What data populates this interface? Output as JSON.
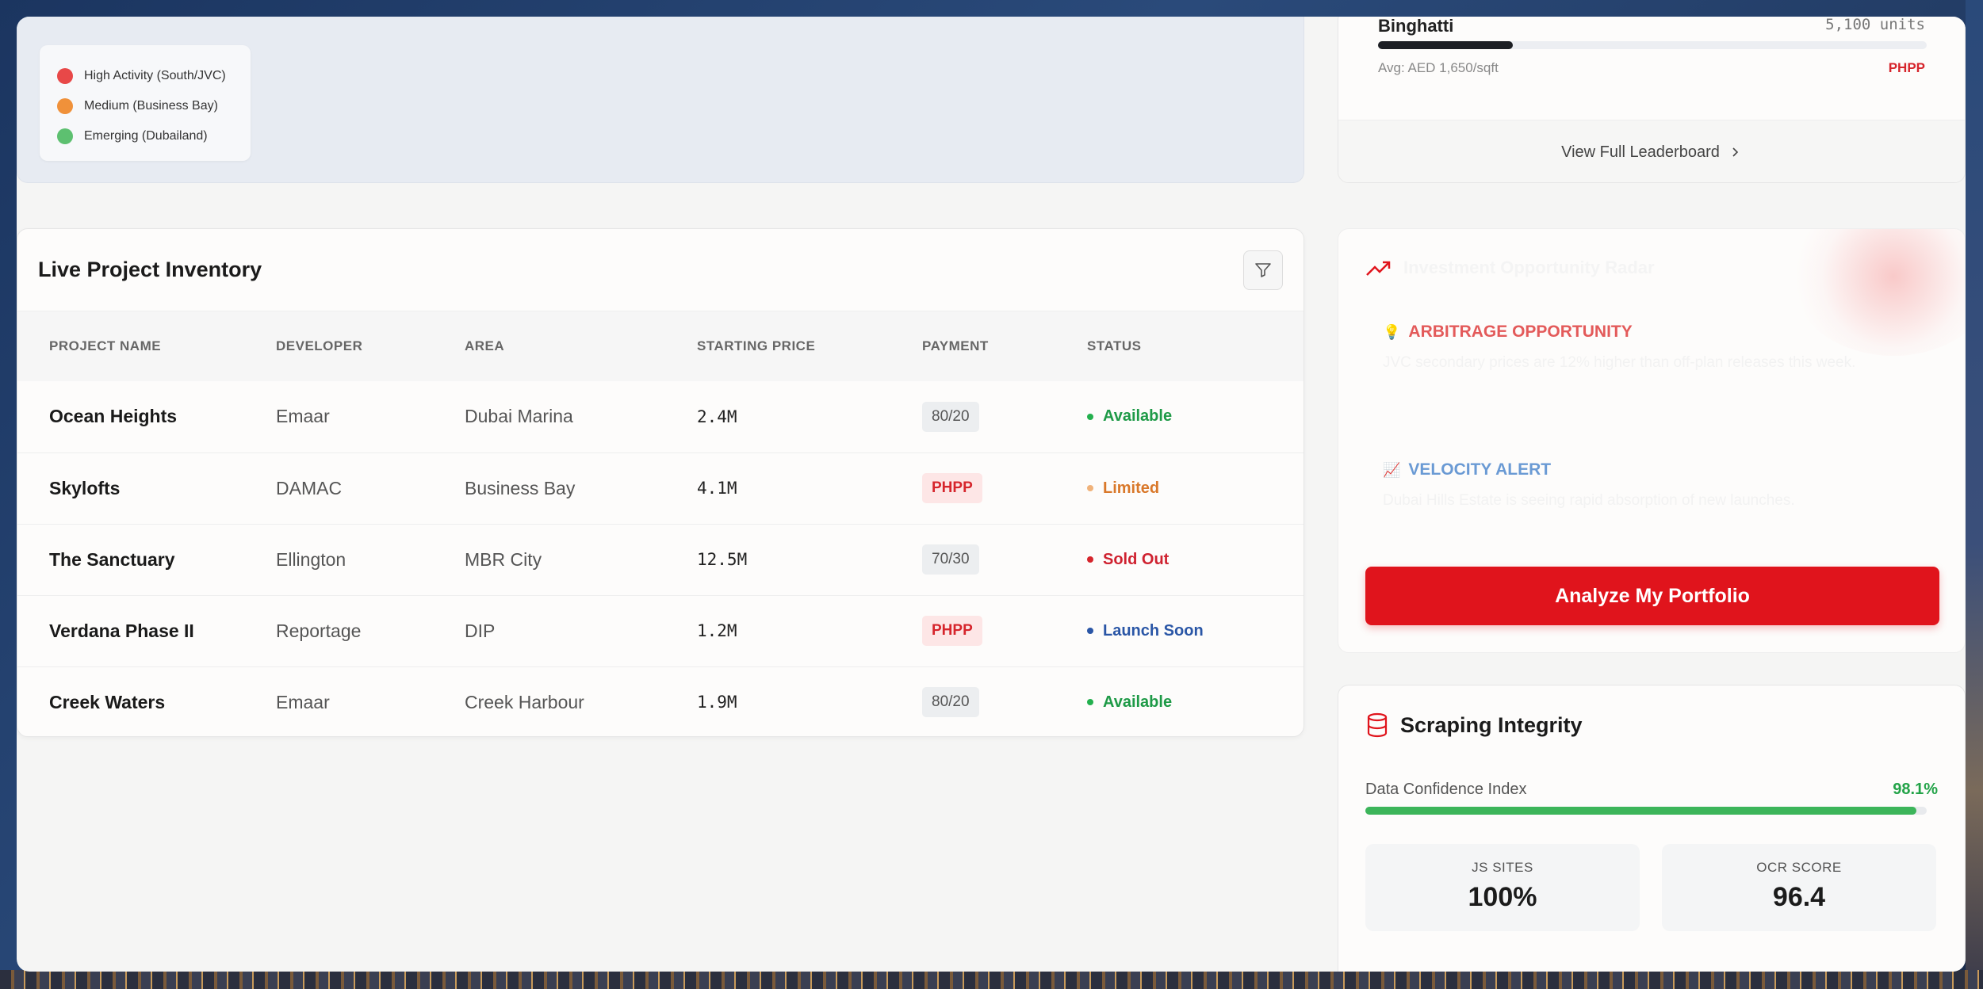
{
  "map": {
    "legend": [
      {
        "label": "High Activity (South/JVC)",
        "color": "#e84848"
      },
      {
        "label": "Medium (Business Bay)",
        "color": "#f0913a"
      },
      {
        "label": "Emerging (Dubailand)",
        "color": "#5dc070"
      }
    ]
  },
  "inventory": {
    "title": "Live Project Inventory",
    "columns": [
      "PROJECT NAME",
      "DEVELOPER",
      "AREA",
      "STARTING PRICE",
      "PAYMENT",
      "STATUS"
    ],
    "rows": [
      {
        "project": "Ocean Heights",
        "developer": "Emaar",
        "area": "Dubai Marina",
        "price": "2.4M",
        "payment": "80/20",
        "status": "Available"
      },
      {
        "project": "Skylofts",
        "developer": "DAMAC",
        "area": "Business Bay",
        "price": "4.1M",
        "payment": "PHPP",
        "status": "Limited"
      },
      {
        "project": "The Sanctuary",
        "developer": "Ellington",
        "area": "MBR City",
        "price": "12.5M",
        "payment": "70/30",
        "status": "Sold Out"
      },
      {
        "project": "Verdana Phase II",
        "developer": "Reportage",
        "area": "DIP",
        "price": "1.2M",
        "payment": "PHPP",
        "status": "Launch Soon"
      },
      {
        "project": "Creek Waters",
        "developer": "Emaar",
        "area": "Creek Harbour",
        "price": "1.9M",
        "payment": "80/20",
        "status": "Available"
      }
    ],
    "status_colors": {
      "Available": "#1e9a47",
      "Limited": "#d9782a",
      "Sold Out": "#cf2230",
      "Launch Soon": "#2a56a6"
    },
    "status_dot_colors": {
      "Available": "#23b04e",
      "Limited": "#f0b27a",
      "Sold Out": "#d6252c",
      "Launch Soon": "#2a56a6"
    }
  },
  "leaderboard": {
    "developer": "Binghatti",
    "units": "5,100 units",
    "bar_fraction": 0.245,
    "avg": "Avg: AED 1,650/sqft",
    "tag": "PHPP",
    "footer": "View Full Leaderboard"
  },
  "insights": {
    "header": "Investment Opportunity Radar",
    "items": [
      {
        "icon": "lightbulb-icon",
        "label": "ARBITRAGE OPPORTUNITY",
        "color": "#e35a5a",
        "desc": "JVC secondary prices are 12% higher than off-plan releases this week."
      },
      {
        "icon": "chart-icon",
        "label": "VELOCITY ALERT",
        "color": "#6a9ad4",
        "desc": "Dubai Hills Estate is seeing rapid absorption of new launches."
      }
    ],
    "button": "Analyze My Portfolio"
  },
  "scraping": {
    "title": "Scraping Integrity",
    "confidence_label": "Data Confidence Index",
    "confidence_value": "98.1%",
    "confidence_fraction": 0.981,
    "stats": [
      {
        "label": "JS SITES",
        "value": "100%"
      },
      {
        "label": "OCR SCORE",
        "value": "96.4"
      }
    ]
  }
}
